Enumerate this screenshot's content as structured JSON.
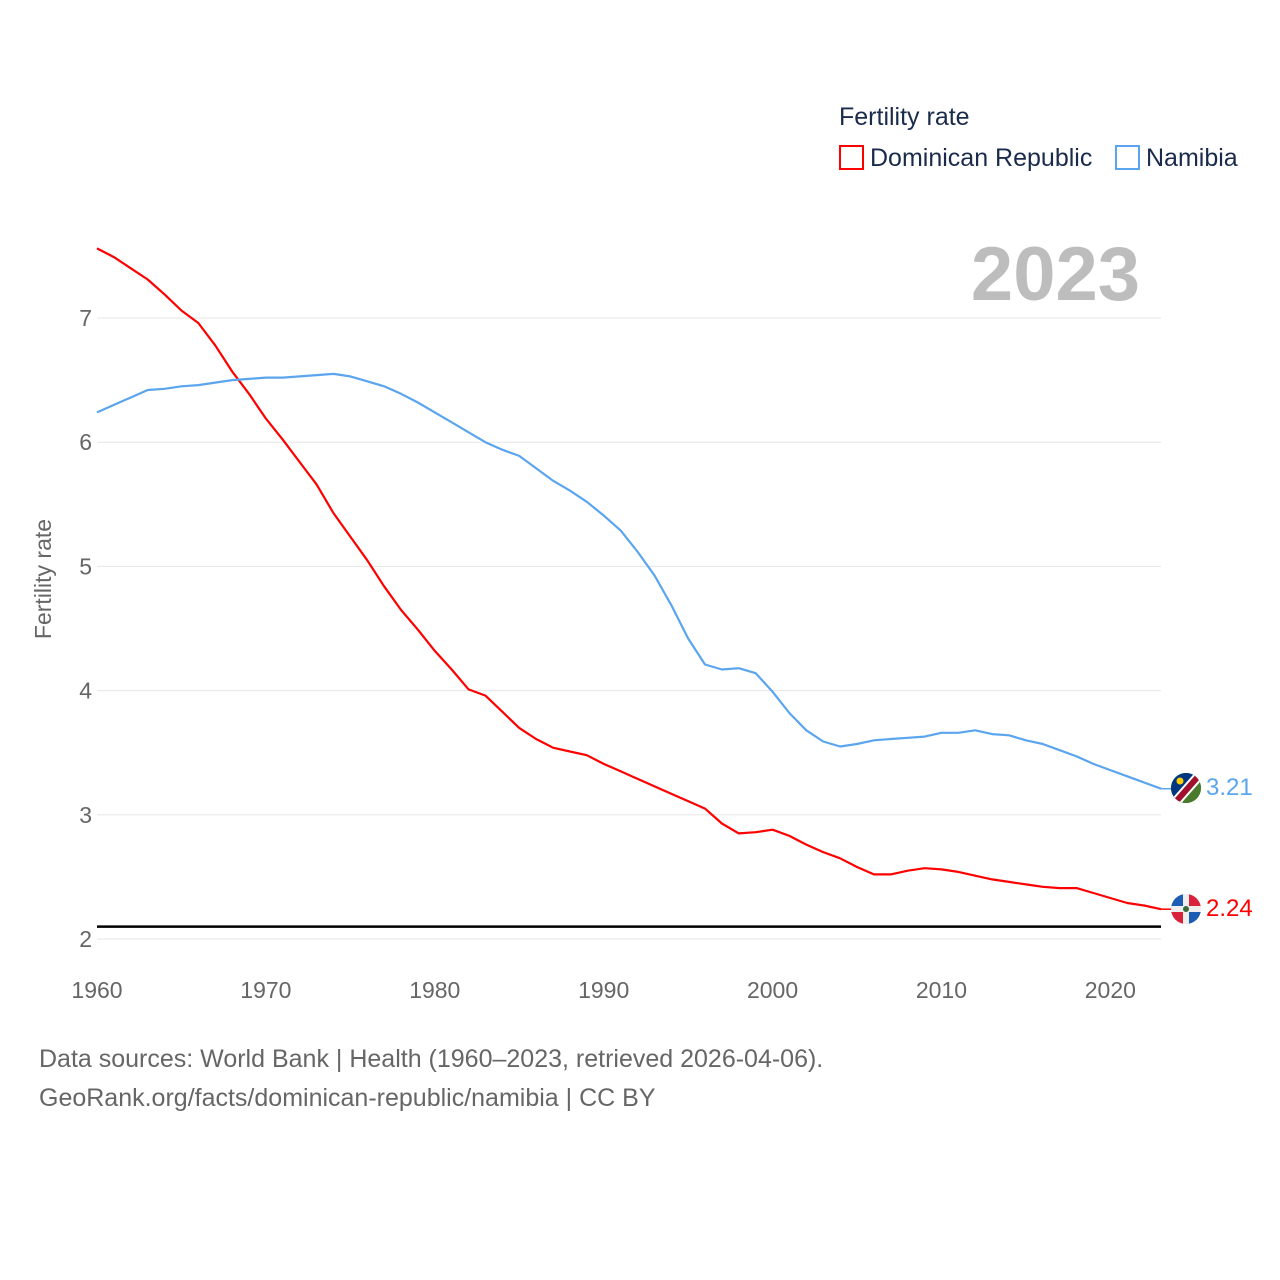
{
  "chart_data": {
    "type": "line",
    "legend_title": "Fertility rate",
    "legend_position": "top-right",
    "ylabel": "Fertility rate",
    "xlabel": "",
    "year_label": "2023",
    "xlim": [
      1960,
      2023
    ],
    "ylim": [
      2,
      7.6
    ],
    "x_ticks": [
      "1960",
      "1970",
      "1980",
      "1990",
      "2000",
      "2010",
      "2020"
    ],
    "y_ticks": [
      "2",
      "3",
      "4",
      "5",
      "6",
      "7"
    ],
    "reference_line": 2.1,
    "x": [
      1960,
      1961,
      1962,
      1963,
      1964,
      1965,
      1966,
      1967,
      1968,
      1969,
      1970,
      1971,
      1972,
      1973,
      1974,
      1975,
      1976,
      1977,
      1978,
      1979,
      1980,
      1981,
      1982,
      1983,
      1984,
      1985,
      1986,
      1987,
      1988,
      1989,
      1990,
      1991,
      1992,
      1993,
      1994,
      1995,
      1996,
      1997,
      1998,
      1999,
      2000,
      2001,
      2002,
      2003,
      2004,
      2005,
      2006,
      2007,
      2008,
      2009,
      2010,
      2011,
      2012,
      2013,
      2014,
      2015,
      2016,
      2017,
      2018,
      2019,
      2020,
      2021,
      2022,
      2023
    ],
    "series": [
      {
        "name": "Dominican Republic",
        "color": "#ff0000",
        "end_label": "2.24",
        "values": [
          7.56,
          7.49,
          7.4,
          7.31,
          7.19,
          7.06,
          6.96,
          6.78,
          6.57,
          6.39,
          6.19,
          6.02,
          5.84,
          5.66,
          5.43,
          5.24,
          5.05,
          4.84,
          4.65,
          4.49,
          4.32,
          4.17,
          4.01,
          3.96,
          3.83,
          3.7,
          3.61,
          3.54,
          3.51,
          3.48,
          3.41,
          3.35,
          3.29,
          3.23,
          3.17,
          3.11,
          3.05,
          2.93,
          2.85,
          2.86,
          2.88,
          2.83,
          2.76,
          2.7,
          2.65,
          2.58,
          2.52,
          2.52,
          2.55,
          2.57,
          2.56,
          2.54,
          2.51,
          2.48,
          2.46,
          2.44,
          2.42,
          2.41,
          2.41,
          2.37,
          2.33,
          2.29,
          2.27,
          2.24
        ]
      },
      {
        "name": "Namibia",
        "color": "#5ba5ee",
        "end_label": "3.21",
        "values": [
          6.24,
          6.3,
          6.36,
          6.42,
          6.43,
          6.45,
          6.46,
          6.48,
          6.5,
          6.51,
          6.52,
          6.52,
          6.53,
          6.54,
          6.55,
          6.53,
          6.49,
          6.45,
          6.39,
          6.32,
          6.24,
          6.16,
          6.08,
          6.0,
          5.94,
          5.89,
          5.79,
          5.69,
          5.61,
          5.52,
          5.41,
          5.29,
          5.12,
          4.93,
          4.69,
          4.42,
          4.21,
          4.17,
          4.18,
          4.14,
          3.99,
          3.82,
          3.68,
          3.59,
          3.55,
          3.57,
          3.6,
          3.61,
          3.62,
          3.63,
          3.66,
          3.66,
          3.68,
          3.65,
          3.64,
          3.6,
          3.57,
          3.52,
          3.47,
          3.41,
          3.36,
          3.31,
          3.26,
          3.21
        ]
      }
    ]
  },
  "footer": {
    "line1": "Data sources: World Bank | Health (1960–2023, retrieved 2026-04-06).",
    "line2": "GeoRank.org/facts/dominican-republic/namibia | CC BY"
  }
}
